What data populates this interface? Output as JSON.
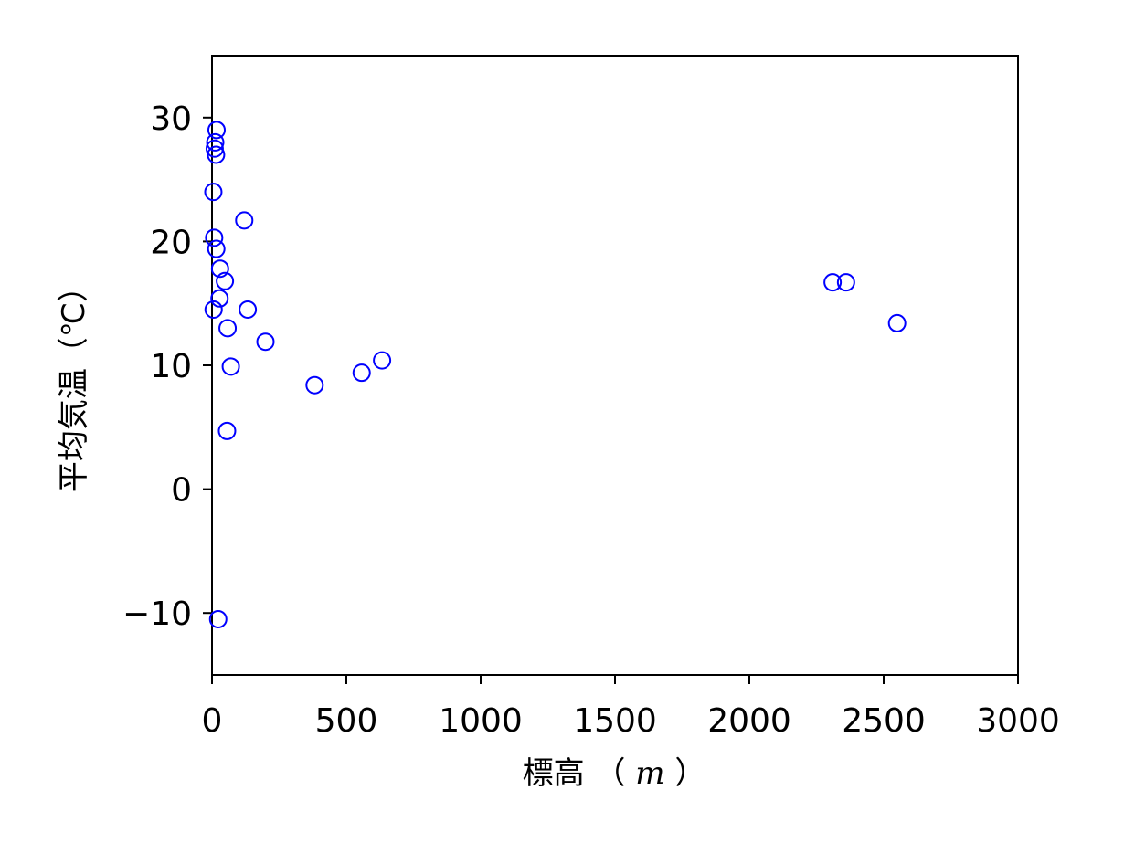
{
  "chart_data": {
    "type": "scatter",
    "xlabel": "標高",
    "xlabel_unit": "m",
    "ylabel": "平均気温（℃）",
    "xlim": [
      0,
      3000
    ],
    "ylim": [
      -15,
      35
    ],
    "x_ticks": [
      0,
      500,
      1000,
      1500,
      2000,
      2500,
      3000
    ],
    "x_tick_labels": [
      "0",
      "500",
      "1000",
      "1500",
      "2000",
      "2500",
      "3000"
    ],
    "y_ticks": [
      -10,
      0,
      10,
      20,
      30
    ],
    "y_tick_labels": [
      "−10",
      "0",
      "10",
      "20",
      "30"
    ],
    "grid": false,
    "marker": "open-circle",
    "marker_color": "#0000ff",
    "series": [
      {
        "points": [
          {
            "x": 17,
            "y": 29.0
          },
          {
            "x": 12,
            "y": 28.0
          },
          {
            "x": 10,
            "y": 27.5
          },
          {
            "x": 15,
            "y": 27.0
          },
          {
            "x": 5,
            "y": 24.0
          },
          {
            "x": 8,
            "y": 20.3
          },
          {
            "x": 16,
            "y": 19.4
          },
          {
            "x": 120,
            "y": 21.7
          },
          {
            "x": 30,
            "y": 17.8
          },
          {
            "x": 48,
            "y": 16.8
          },
          {
            "x": 28,
            "y": 15.4
          },
          {
            "x": 6,
            "y": 14.5
          },
          {
            "x": 133,
            "y": 14.5
          },
          {
            "x": 58,
            "y": 13.0
          },
          {
            "x": 199,
            "y": 11.9
          },
          {
            "x": 70,
            "y": 9.9
          },
          {
            "x": 382,
            "y": 8.4
          },
          {
            "x": 557,
            "y": 9.4
          },
          {
            "x": 633,
            "y": 10.4
          },
          {
            "x": 56,
            "y": 4.7
          },
          {
            "x": 23,
            "y": -10.5
          },
          {
            "x": 2310,
            "y": 16.7
          },
          {
            "x": 2360,
            "y": 16.7
          },
          {
            "x": 2550,
            "y": 13.4
          }
        ]
      }
    ]
  }
}
